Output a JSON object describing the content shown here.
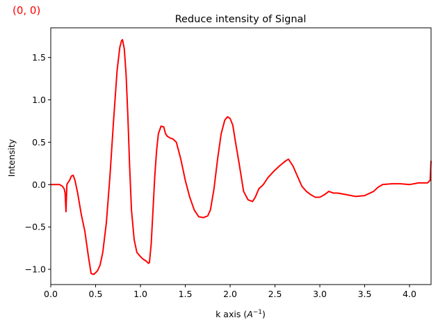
{
  "overlay": {
    "corner_label": "(0, 0)",
    "corner_color": "#ff0000"
  },
  "chart_data": {
    "type": "line",
    "title": "Reduce intensity of  Signal",
    "xlabel_main": "k axis (",
    "xlabel_sym": "A",
    "xlabel_sup": "−1",
    "xlabel_close": ")",
    "ylabel": "Intensity",
    "xlim": [
      0.0,
      4.24
    ],
    "ylim": [
      -1.18,
      1.85
    ],
    "grid": false,
    "legend": "none",
    "x_ticks": [
      0.0,
      0.5,
      1.0,
      1.5,
      2.0,
      2.5,
      3.0,
      3.5,
      4.0
    ],
    "x_tick_labels": [
      "0.0",
      "0.5",
      "1.0",
      "1.5",
      "2.0",
      "2.5",
      "3.0",
      "3.5",
      "4.0"
    ],
    "y_ticks": [
      1.5,
      1.0,
      0.5,
      0.0,
      -0.5,
      -1.0
    ],
    "y_tick_labels": [
      "1.5",
      "1.0",
      "0.5",
      "0.0",
      "−0.5",
      "−1.0"
    ],
    "series": [
      {
        "color": "#ff0000",
        "x": [
          0.0,
          0.1,
          0.13,
          0.15,
          0.16,
          0.17,
          0.175,
          0.18,
          0.19,
          0.21,
          0.23,
          0.25,
          0.27,
          0.3,
          0.34,
          0.38,
          0.4,
          0.42,
          0.45,
          0.48,
          0.52,
          0.55,
          0.58,
          0.62,
          0.66,
          0.7,
          0.74,
          0.77,
          0.79,
          0.8,
          0.82,
          0.84,
          0.86,
          0.88,
          0.9,
          0.93,
          0.96,
          1.0,
          1.03,
          1.06,
          1.09,
          1.1,
          1.12,
          1.14,
          1.16,
          1.18,
          1.2,
          1.23,
          1.26,
          1.28,
          1.3,
          1.33,
          1.36,
          1.4,
          1.45,
          1.5,
          1.55,
          1.6,
          1.65,
          1.7,
          1.75,
          1.78,
          1.82,
          1.86,
          1.9,
          1.94,
          1.97,
          2.0,
          2.03,
          2.06,
          2.1,
          2.15,
          2.2,
          2.25,
          2.28,
          2.32,
          2.37,
          2.42,
          2.48,
          2.55,
          2.62,
          2.65,
          2.7,
          2.75,
          2.8,
          2.85,
          2.9,
          2.95,
          3.0,
          3.05,
          3.1,
          3.15,
          3.2,
          3.3,
          3.4,
          3.5,
          3.6,
          3.65,
          3.7,
          3.8,
          3.9,
          4.0,
          4.1,
          4.2,
          4.23,
          4.24
        ],
        "y": [
          0.0,
          0.0,
          -0.02,
          -0.05,
          -0.1,
          -0.32,
          -0.15,
          0.0,
          0.02,
          0.05,
          0.1,
          0.11,
          0.05,
          -0.1,
          -0.35,
          -0.55,
          -0.7,
          -0.85,
          -1.05,
          -1.06,
          -1.02,
          -0.95,
          -0.8,
          -0.45,
          0.1,
          0.75,
          1.35,
          1.62,
          1.7,
          1.71,
          1.6,
          1.3,
          0.8,
          0.2,
          -0.3,
          -0.65,
          -0.8,
          -0.85,
          -0.88,
          -0.9,
          -0.93,
          -0.92,
          -0.7,
          -0.3,
          0.1,
          0.4,
          0.6,
          0.69,
          0.68,
          0.6,
          0.57,
          0.55,
          0.54,
          0.5,
          0.3,
          0.05,
          -0.15,
          -0.3,
          -0.38,
          -0.39,
          -0.37,
          -0.3,
          -0.05,
          0.3,
          0.6,
          0.76,
          0.8,
          0.78,
          0.7,
          0.5,
          0.25,
          -0.08,
          -0.18,
          -0.2,
          -0.15,
          -0.05,
          0.0,
          0.08,
          0.15,
          0.22,
          0.28,
          0.3,
          0.22,
          0.1,
          -0.02,
          -0.08,
          -0.12,
          -0.15,
          -0.15,
          -0.12,
          -0.08,
          -0.1,
          -0.1,
          -0.12,
          -0.14,
          -0.13,
          -0.08,
          -0.03,
          0.0,
          0.01,
          0.01,
          0.0,
          0.02,
          0.02,
          0.05,
          0.28
        ]
      }
    ]
  }
}
